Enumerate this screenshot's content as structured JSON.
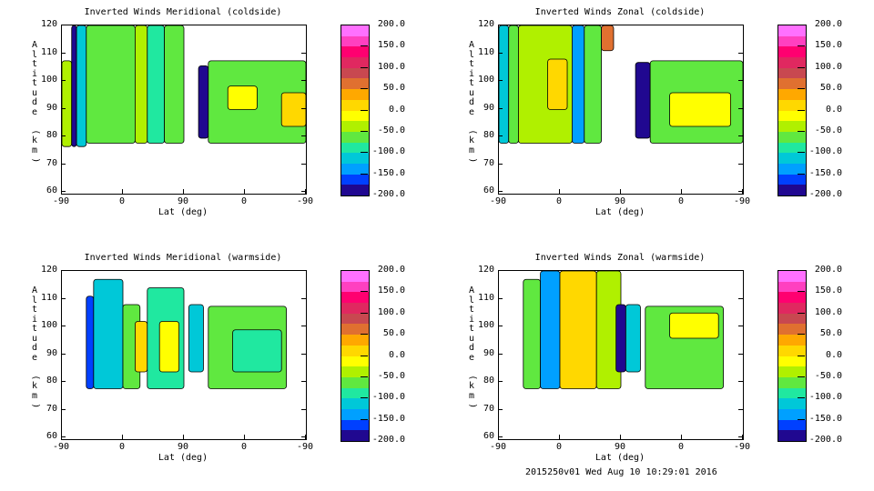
{
  "chart_data": [
    {
      "type": "heatmap",
      "title": "Inverted Winds Meridional (coldside)",
      "xlabel": "Lat (deg)",
      "ylabel": "Altitude (km)",
      "xticks": [
        "-90",
        "0",
        "90",
        "0",
        "-90"
      ],
      "yticks": [
        "60",
        "70",
        "80",
        "90",
        "100",
        "110",
        "120"
      ],
      "ylim": [
        60,
        120
      ],
      "colorbar": {
        "ticks": [
          "200.0",
          "150.0",
          "100.0",
          "50.0",
          "0.0",
          "-50.0",
          "-100.0",
          "-150.0",
          "-200.0"
        ],
        "range": [
          -200,
          200
        ]
      }
    },
    {
      "type": "heatmap",
      "title": "Inverted Winds Zonal (coldside)",
      "xlabel": "Lat (deg)",
      "ylabel": "Altitude (km)",
      "xticks": [
        "-90",
        "0",
        "90",
        "0",
        "-90"
      ],
      "yticks": [
        "60",
        "70",
        "80",
        "90",
        "100",
        "110",
        "120"
      ],
      "ylim": [
        60,
        120
      ],
      "colorbar": {
        "ticks": [
          "200.0",
          "150.0",
          "100.0",
          "50.0",
          "0.0",
          "-50.0",
          "-100.0",
          "-150.0",
          "-200.0"
        ],
        "range": [
          -200,
          200
        ]
      }
    },
    {
      "type": "heatmap",
      "title": "Inverted Winds Meridional (warmside)",
      "xlabel": "Lat (deg)",
      "ylabel": "Altitude (km)",
      "xticks": [
        "-90",
        "0",
        "90",
        "0",
        "-90"
      ],
      "yticks": [
        "60",
        "70",
        "80",
        "90",
        "100",
        "110",
        "120"
      ],
      "ylim": [
        60,
        120
      ],
      "colorbar": {
        "ticks": [
          "200.0",
          "150.0",
          "100.0",
          "50.0",
          "0.0",
          "-50.0",
          "-100.0",
          "-150.0",
          "-200.0"
        ],
        "range": [
          -200,
          200
        ]
      }
    },
    {
      "type": "heatmap",
      "title": "Inverted Winds Zonal (warmside)",
      "xlabel": "Lat (deg)",
      "ylabel": "Altitude (km)",
      "xticks": [
        "-90",
        "0",
        "90",
        "0",
        "-90"
      ],
      "yticks": [
        "60",
        "70",
        "80",
        "90",
        "100",
        "110",
        "120"
      ],
      "ylim": [
        60,
        120
      ],
      "colorbar": {
        "ticks": [
          "200.0",
          "150.0",
          "100.0",
          "50.0",
          "0.0",
          "-50.0",
          "-100.0",
          "-150.0",
          "-200.0"
        ],
        "range": [
          -200,
          200
        ]
      }
    }
  ],
  "colormap": [
    "#ff70ff",
    "#ff40c0",
    "#ff0070",
    "#e02860",
    "#c84850",
    "#e07030",
    "#ffa800",
    "#ffd800",
    "#ffff00",
    "#b0f000",
    "#60e840",
    "#20e8a0",
    "#00c8d8",
    "#00a0ff",
    "#0040ff",
    "#200890"
  ],
  "footer": "2015250v01 Wed Aug 10 10:29:01 2016"
}
